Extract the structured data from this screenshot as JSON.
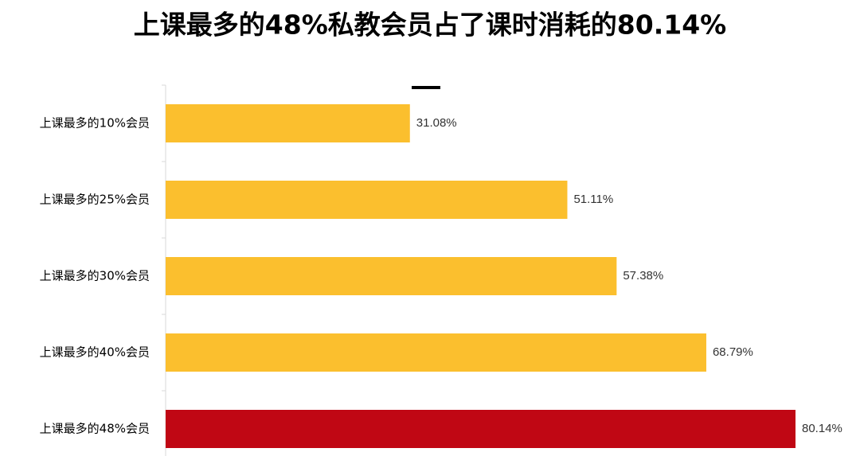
{
  "chart_data": {
    "type": "bar",
    "orientation": "horizontal",
    "title": "上课最多的48%私教会员占了课时消耗的80.14%",
    "categories": [
      "上课最多的10%会员",
      "上课最多的25%会员",
      "上课最多的30%会员",
      "上课最多的40%会员",
      "上课最多的48%会员"
    ],
    "values": [
      31.08,
      51.11,
      57.38,
      68.79,
      80.14
    ],
    "value_labels": [
      "31.08%",
      "51.11%",
      "57.38%",
      "68.79%",
      "80.14%"
    ],
    "colors": [
      "#fbbf2e",
      "#fbbf2e",
      "#fbbf2e",
      "#fbbf2e",
      "#c00714"
    ]
  }
}
